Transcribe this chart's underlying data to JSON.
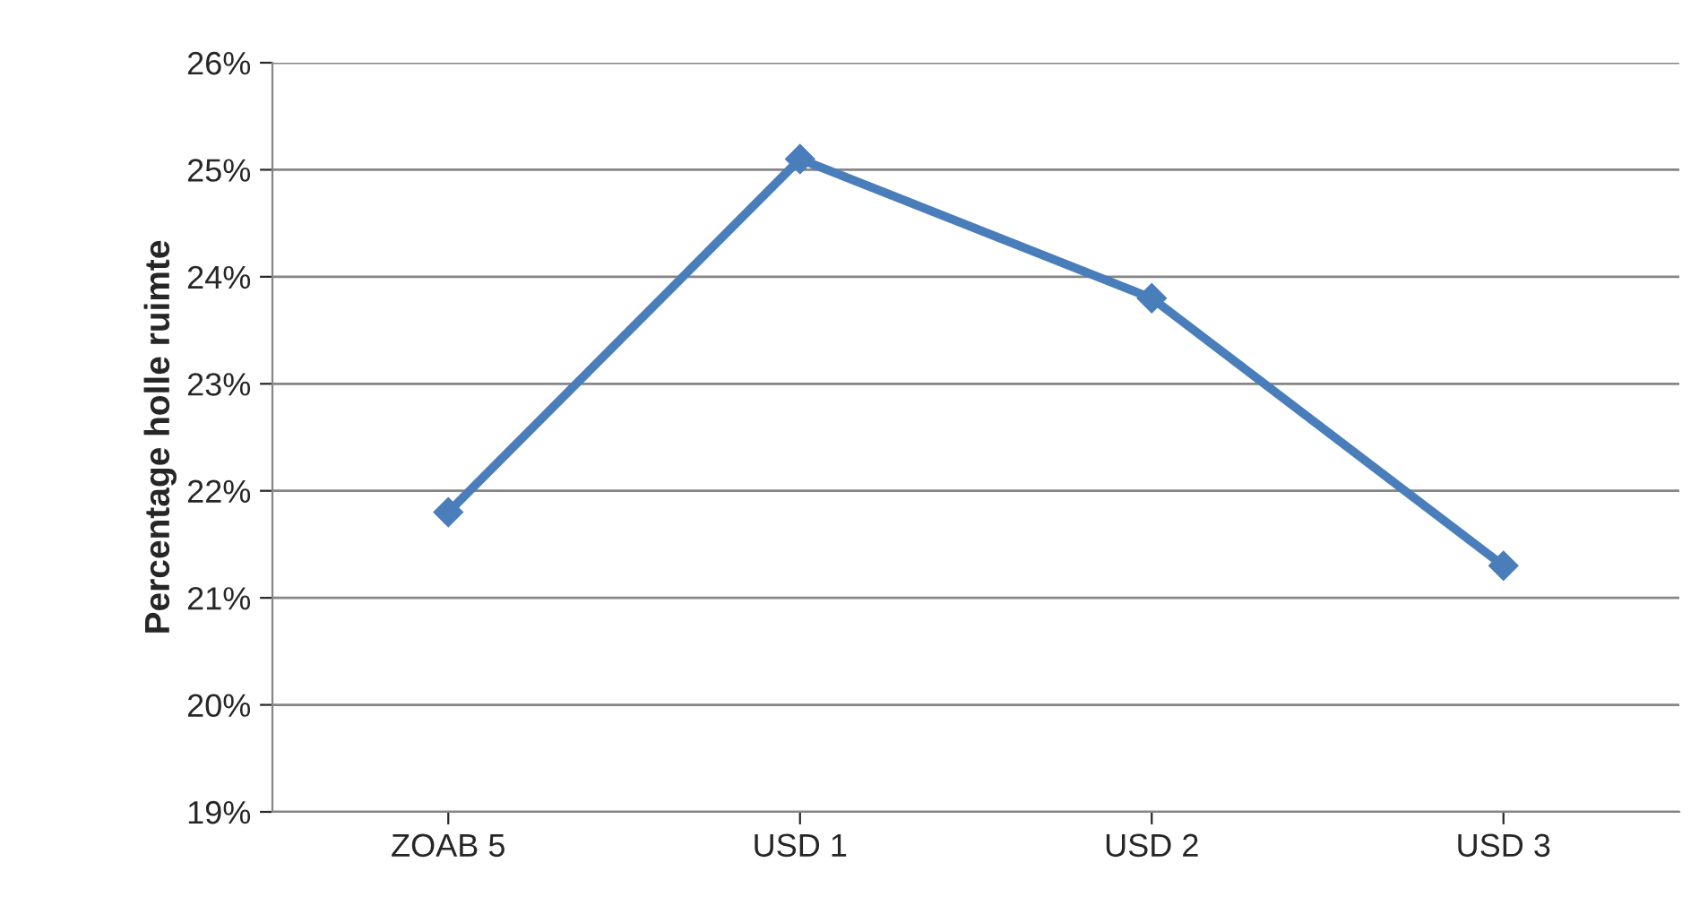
{
  "chart_data": {
    "type": "line",
    "ylabel": "Percentage holle ruimte",
    "categories": [
      "ZOAB 5",
      "USD 1",
      "USD 2",
      "USD 3"
    ],
    "series": [
      {
        "color": "#4a7ebb",
        "values": [
          21.8,
          25.1,
          23.8,
          21.3
        ]
      }
    ],
    "ylim": [
      19,
      26
    ],
    "yticks": [
      {
        "value": 19,
        "label": "19%"
      },
      {
        "value": 20,
        "label": "20%"
      },
      {
        "value": 21,
        "label": "21%"
      },
      {
        "value": 22,
        "label": "22%"
      },
      {
        "value": 23,
        "label": "23%"
      },
      {
        "value": 24,
        "label": "24%"
      },
      {
        "value": 25,
        "label": "25%"
      },
      {
        "value": 26,
        "label": "26%"
      }
    ],
    "grid": "y",
    "marker": "diamond",
    "line_style": "solid",
    "legend": false
  }
}
